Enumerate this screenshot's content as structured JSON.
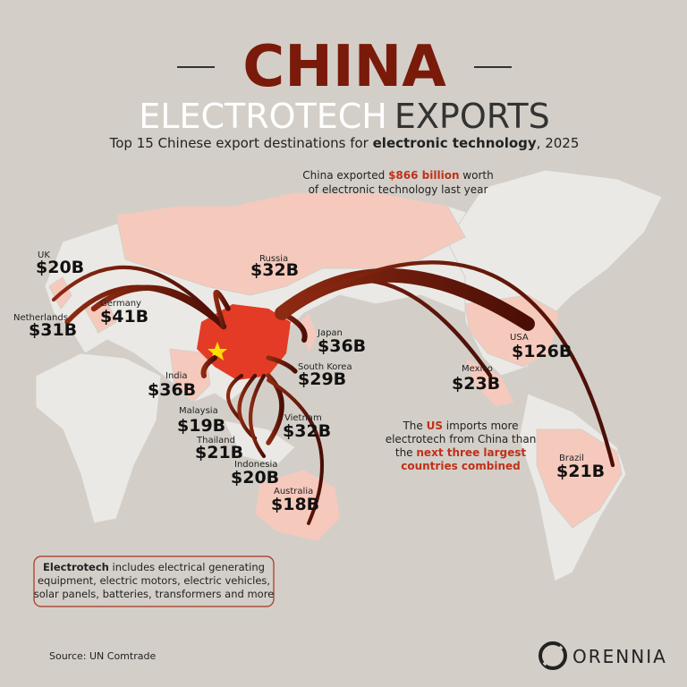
{
  "header": {
    "title": "CHINA",
    "subtitle_light": "ELECTROTECH",
    "subtitle_dark": "EXPORTS",
    "description": [
      "Top 15 Chinese export destinations for ",
      "electronic technology",
      ", 2025"
    ]
  },
  "total_note": {
    "line1": [
      "China exported ",
      "$866 billion",
      " worth"
    ],
    "line2": "of electronic technology last year"
  },
  "us_note": {
    "line1": [
      "The ",
      "US",
      " imports more"
    ],
    "line2": "electrotech from China than",
    "line3": [
      "the ",
      "next three largest"
    ],
    "line4": "countries combined"
  },
  "definition": {
    "line1": [
      "Electrotech",
      " includes electrical generating"
    ],
    "line2": "equipment, electric motors, electric vehicles,",
    "line3": "solar panels, batteries, transformers and more"
  },
  "destinations": [
    {
      "name": "UK",
      "value": 20,
      "label": "$20B"
    },
    {
      "name": "Netherlands",
      "value": 31,
      "label": "$31B"
    },
    {
      "name": "Germany",
      "value": 41,
      "label": "$41B"
    },
    {
      "name": "Russia",
      "value": 32,
      "label": "$32B"
    },
    {
      "name": "Japan",
      "value": 36,
      "label": "$36B"
    },
    {
      "name": "South Korea",
      "value": 29,
      "label": "$29B"
    },
    {
      "name": "India",
      "value": 36,
      "label": "$36B"
    },
    {
      "name": "Malaysia",
      "value": 19,
      "label": "$19B"
    },
    {
      "name": "Thailand",
      "value": 21,
      "label": "$21B"
    },
    {
      "name": "Indonesia",
      "value": 20,
      "label": "$20B"
    },
    {
      "name": "Vietnam",
      "value": 32,
      "label": "$32B"
    },
    {
      "name": "Australia",
      "value": 18,
      "label": "$18B"
    },
    {
      "name": "Mexico",
      "value": 23,
      "label": "$23B"
    },
    {
      "name": "USA",
      "value": 126,
      "label": "$126B"
    },
    {
      "name": "Brazil",
      "value": 21,
      "label": "$21B"
    }
  ],
  "source": "Source: UN Comtrade",
  "brand": "ORENNIA"
}
